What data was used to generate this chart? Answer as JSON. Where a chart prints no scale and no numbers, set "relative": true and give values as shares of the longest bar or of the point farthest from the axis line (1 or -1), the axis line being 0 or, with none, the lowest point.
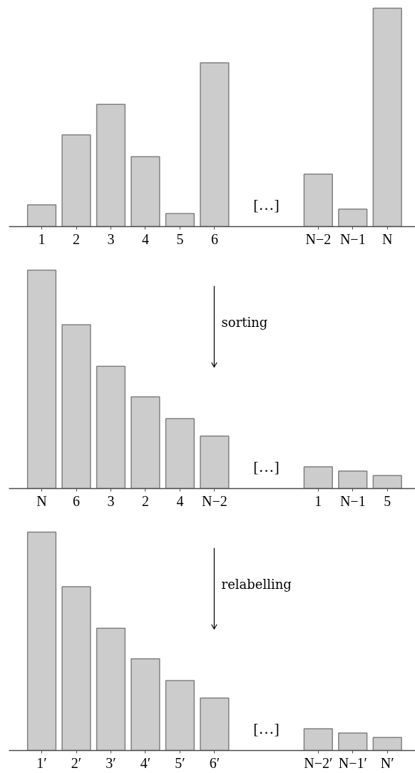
{
  "chart_data": [
    {
      "type": "bar",
      "relative": true,
      "color": "#cccccc",
      "categories": [
        "1",
        "2",
        "3",
        "4",
        "5",
        "6",
        null,
        null,
        "N−2",
        "N−1",
        "N"
      ],
      "values": [
        0.1,
        0.42,
        0.56,
        0.32,
        0.06,
        0.75,
        null,
        null,
        0.24,
        0.08,
        1
      ],
      "annotations": [
        "[…]"
      ]
    },
    {
      "type": "bar",
      "relative": true,
      "color": "#cccccc",
      "categories": [
        "N",
        "6",
        "3",
        "2",
        "4",
        "N−2",
        null,
        null,
        "1",
        "N−1",
        "5"
      ],
      "values": [
        1,
        0.75,
        0.56,
        0.42,
        0.32,
        0.24,
        null,
        null,
        0.1,
        0.08,
        0.06
      ],
      "annotations": [
        "[…]",
        "sorting"
      ]
    },
    {
      "type": "bar",
      "relative": true,
      "color": "#cccccc",
      "categories": [
        "1′",
        "2′",
        "3′",
        "4′",
        "5′",
        "6′",
        null,
        null,
        "N−2′",
        "N−1′",
        "N′"
      ],
      "values": [
        1,
        0.75,
        0.56,
        0.42,
        0.32,
        0.24,
        null,
        null,
        0.1,
        0.08,
        0.06
      ],
      "annotations": [
        "[…]",
        "relabelling"
      ]
    }
  ]
}
